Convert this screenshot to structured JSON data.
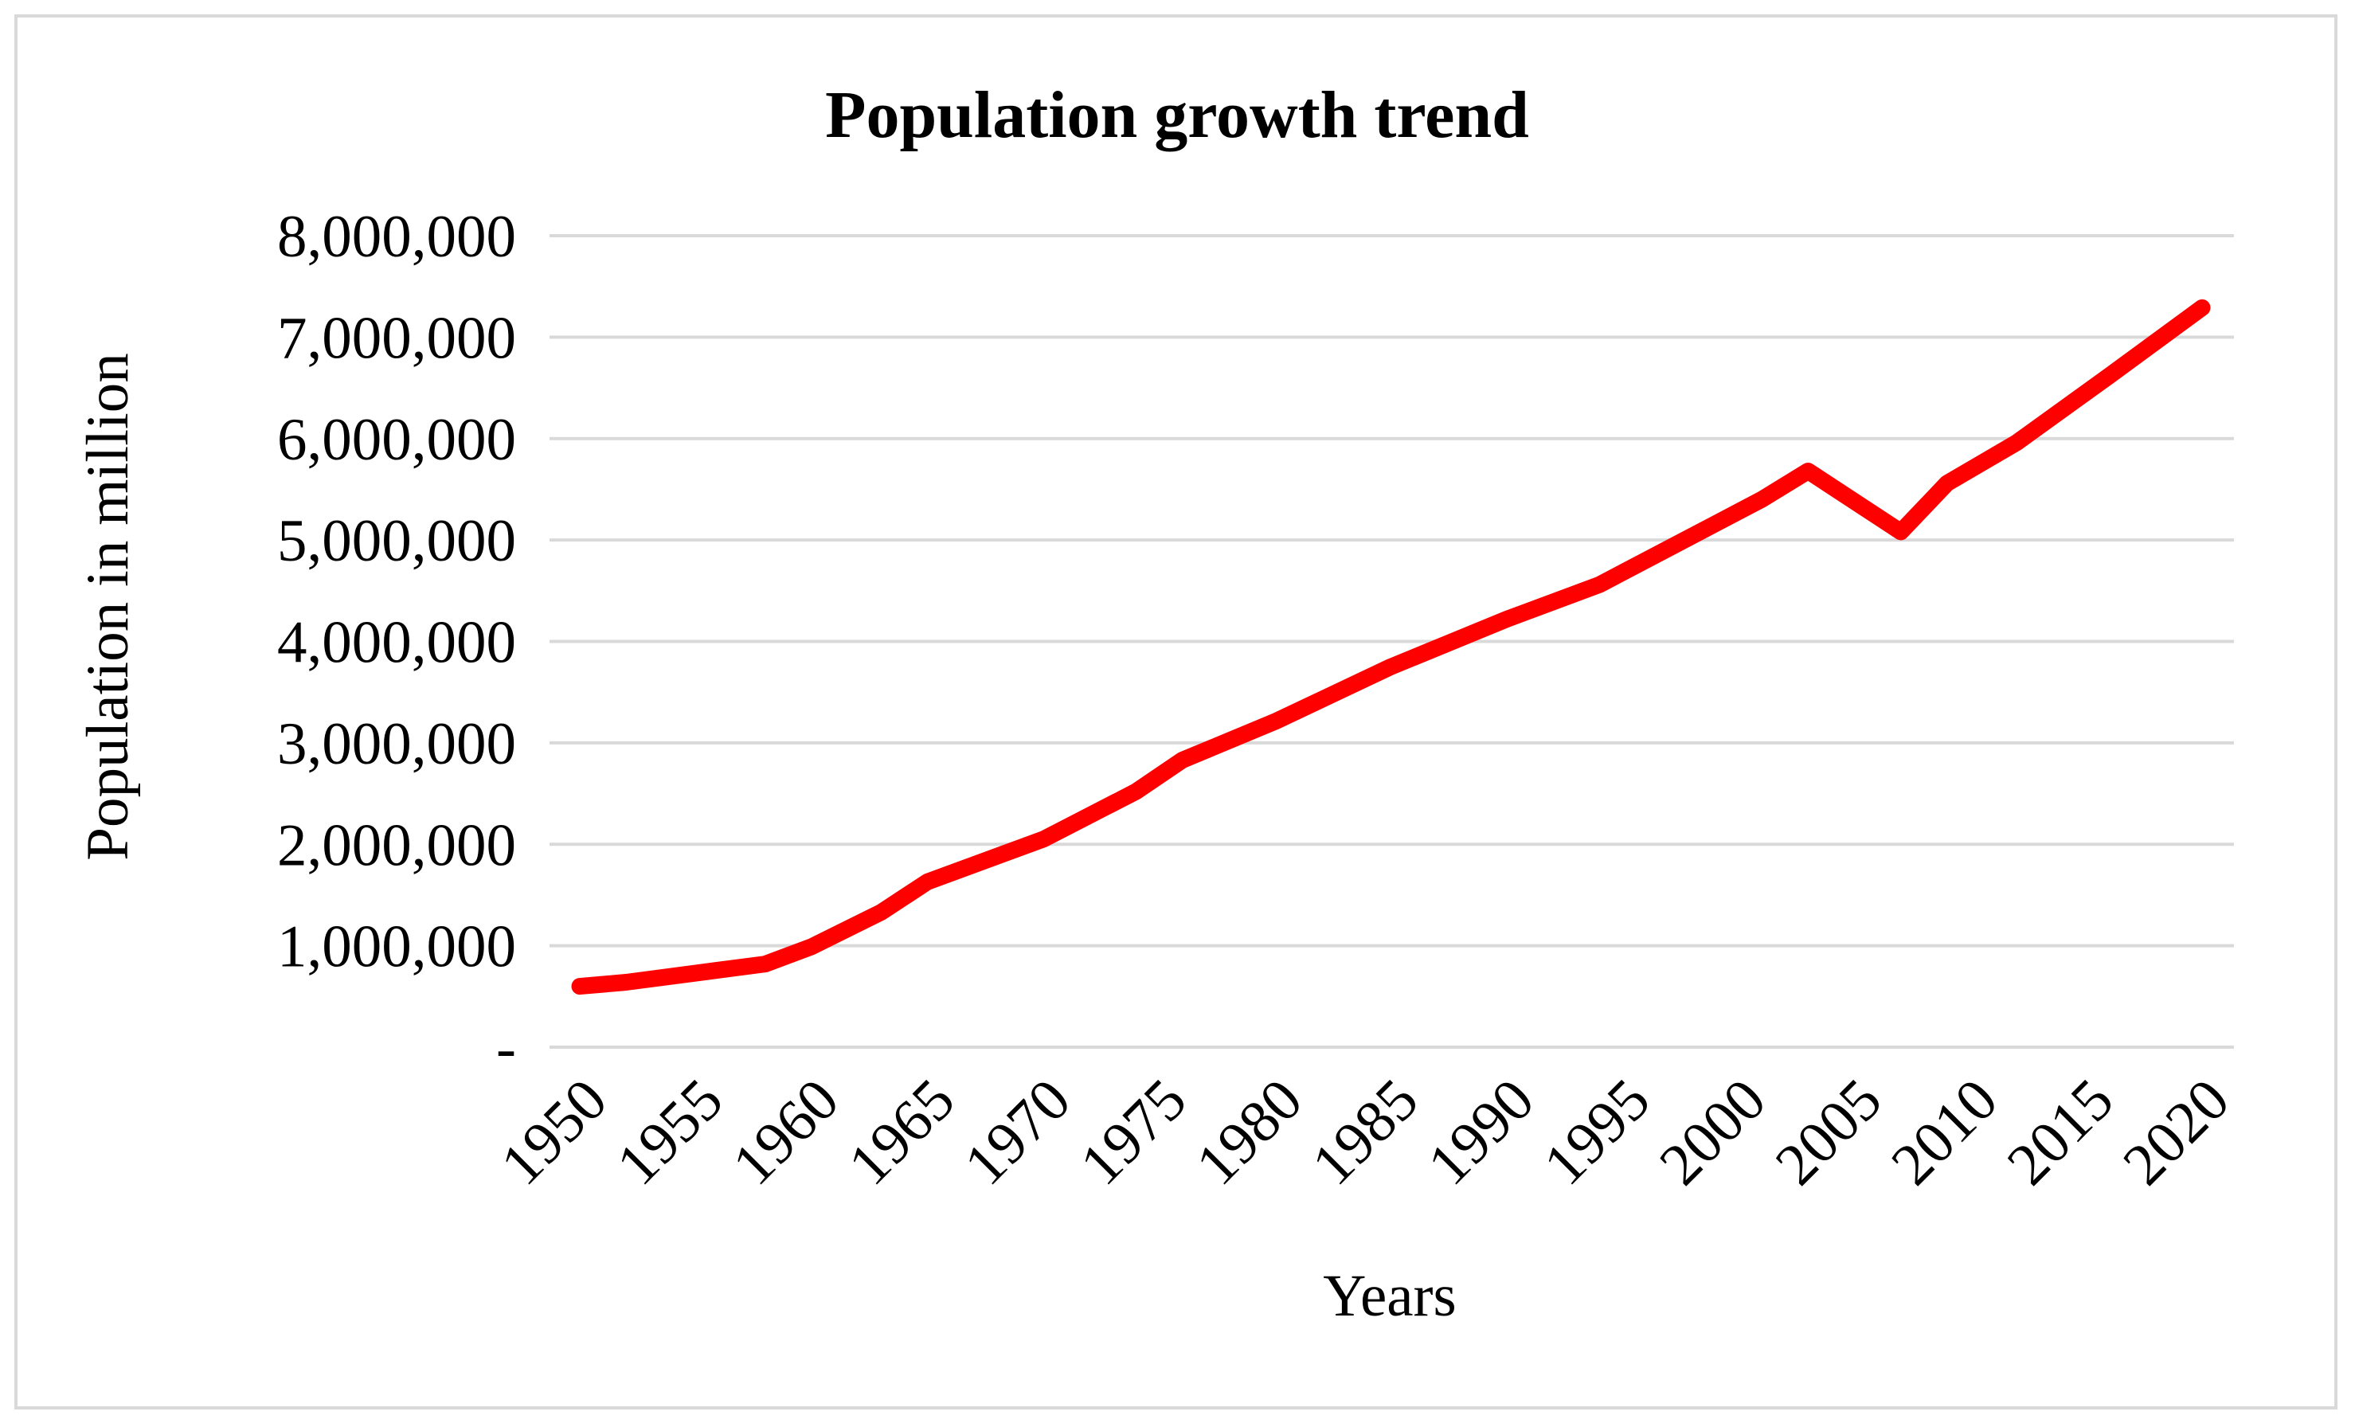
{
  "chart_data": {
    "type": "line",
    "title": "Population growth trend",
    "xlabel": "Years",
    "ylabel": "Population in million",
    "ylim": [
      0,
      8000000
    ],
    "y_ticks": [
      {
        "value": 0,
        "label": "-"
      },
      {
        "value": 1000000,
        "label": "1,000,000"
      },
      {
        "value": 2000000,
        "label": "2,000,000"
      },
      {
        "value": 3000000,
        "label": "3,000,000"
      },
      {
        "value": 4000000,
        "label": "4,000,000"
      },
      {
        "value": 5000000,
        "label": "5,000,000"
      },
      {
        "value": 6000000,
        "label": "6,000,000"
      },
      {
        "value": 7000000,
        "label": "7,000,000"
      },
      {
        "value": 8000000,
        "label": "8,000,000"
      }
    ],
    "x_ticks": [
      "1950",
      "1955",
      "1960",
      "1965",
      "1970",
      "1975",
      "1980",
      "1985",
      "1990",
      "1995",
      "2000",
      "2005",
      "2010",
      "2015",
      "2020"
    ],
    "xlim": [
      1950,
      2020
    ],
    "grid": true,
    "legend": "none",
    "series": [
      {
        "name": "Population",
        "color": "#ff0000",
        "x": [
          1950,
          1952,
          1956,
          1958,
          1960,
          1963,
          1965,
          1970,
          1974,
          1976,
          1980,
          1985,
          1990,
          1994,
          1997,
          2001,
          2003,
          2007,
          2009,
          2012,
          2016,
          2020
        ],
        "y": [
          600000,
          640000,
          760000,
          820000,
          990000,
          1330000,
          1630000,
          2050000,
          2520000,
          2830000,
          3210000,
          3750000,
          4220000,
          4560000,
          4920000,
          5400000,
          5680000,
          5080000,
          5560000,
          5960000,
          6620000,
          7290000
        ]
      }
    ]
  }
}
